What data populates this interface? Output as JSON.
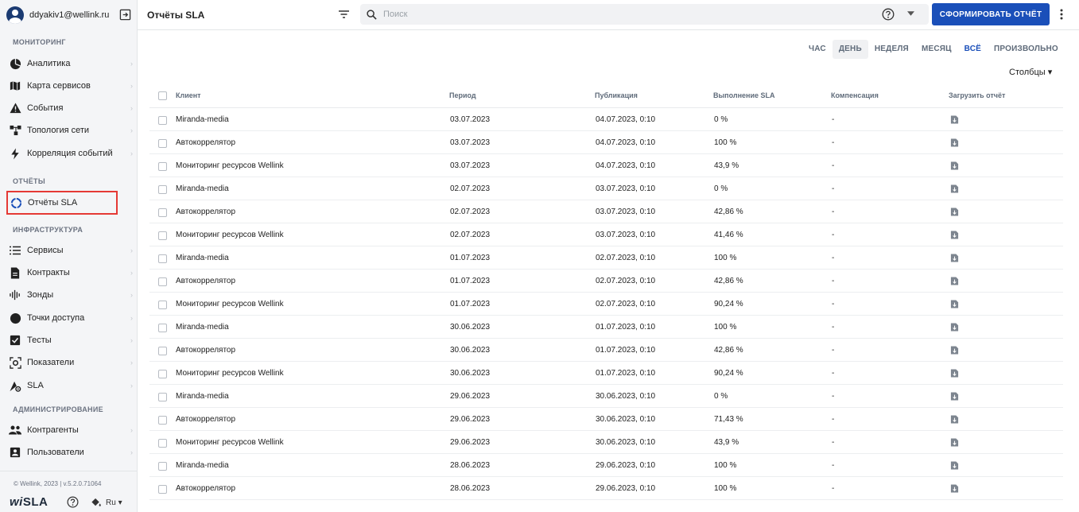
{
  "user": {
    "email": "ddyakiv1@wellink.ru"
  },
  "sidebar": {
    "sections": [
      {
        "label": "МОНИТОРИНГ"
      },
      {
        "label": "ОТЧЁТЫ"
      },
      {
        "label": "ИНФРАСТРУКТУРА"
      },
      {
        "label": "АДМИНИСТРИРОВАНИЕ"
      }
    ],
    "items": [
      {
        "label": "Аналитика",
        "icon": "pie-chart-icon"
      },
      {
        "label": "Карта сервисов",
        "icon": "map-icon"
      },
      {
        "label": "События",
        "icon": "warning-icon"
      },
      {
        "label": "Топология сети",
        "icon": "topology-icon"
      },
      {
        "label": "Корреляция событий",
        "icon": "bolt-icon"
      },
      {
        "label": "Отчёты SLA",
        "icon": "circle-arc-icon"
      },
      {
        "label": "Сервисы",
        "icon": "list-icon"
      },
      {
        "label": "Контракты",
        "icon": "document-icon"
      },
      {
        "label": "Зонды",
        "icon": "signal-icon"
      },
      {
        "label": "Точки доступа",
        "icon": "circle-icon"
      },
      {
        "label": "Тесты",
        "icon": "checkbox-icon"
      },
      {
        "label": "Показатели",
        "icon": "metrics-icon"
      },
      {
        "label": "SLA",
        "icon": "sla-gear-icon"
      },
      {
        "label": "Контрагенты",
        "icon": "people-icon"
      },
      {
        "label": "Пользователи",
        "icon": "user-card-icon"
      }
    ],
    "footer": {
      "copyright": "© Wellink, 2023 | v.5.2.0.71064",
      "brand_prefix": "wi",
      "brand_suffix": "SLA",
      "lang": "Ru"
    }
  },
  "header": {
    "title": "Отчёты SLA",
    "search_placeholder": "Поиск",
    "generate_button": "СФОРМИРОВАТЬ ОТЧЁТ"
  },
  "periods": [
    "ЧАС",
    "ДЕНЬ",
    "НЕДЕЛЯ",
    "МЕСЯЦ",
    "ВСЁ",
    "ПРОИЗВОЛЬНО"
  ],
  "columns_label": "Столбцы",
  "table": {
    "columns": [
      "Клиент",
      "Период",
      "Публикация",
      "Выполнение SLA",
      "Компенсация",
      "Загрузить отчёт"
    ],
    "rows": [
      [
        "Miranda-media",
        "03.07.2023",
        "04.07.2023, 0:10",
        "0 %",
        "-"
      ],
      [
        "Автокоррелятор",
        "03.07.2023",
        "04.07.2023, 0:10",
        "100 %",
        "-"
      ],
      [
        "Мониторинг ресурсов Wellink",
        "03.07.2023",
        "04.07.2023, 0:10",
        "43,9 %",
        "-"
      ],
      [
        "Miranda-media",
        "02.07.2023",
        "03.07.2023, 0:10",
        "0 %",
        "-"
      ],
      [
        "Автокоррелятор",
        "02.07.2023",
        "03.07.2023, 0:10",
        "42,86 %",
        "-"
      ],
      [
        "Мониторинг ресурсов Wellink",
        "02.07.2023",
        "03.07.2023, 0:10",
        "41,46 %",
        "-"
      ],
      [
        "Miranda-media",
        "01.07.2023",
        "02.07.2023, 0:10",
        "100 %",
        "-"
      ],
      [
        "Автокоррелятор",
        "01.07.2023",
        "02.07.2023, 0:10",
        "42,86 %",
        "-"
      ],
      [
        "Мониторинг ресурсов Wellink",
        "01.07.2023",
        "02.07.2023, 0:10",
        "90,24 %",
        "-"
      ],
      [
        "Miranda-media",
        "30.06.2023",
        "01.07.2023, 0:10",
        "100 %",
        "-"
      ],
      [
        "Автокоррелятор",
        "30.06.2023",
        "01.07.2023, 0:10",
        "42,86 %",
        "-"
      ],
      [
        "Мониторинг ресурсов Wellink",
        "30.06.2023",
        "01.07.2023, 0:10",
        "90,24 %",
        "-"
      ],
      [
        "Miranda-media",
        "29.06.2023",
        "30.06.2023, 0:10",
        "0 %",
        "-"
      ],
      [
        "Автокоррелятор",
        "29.06.2023",
        "30.06.2023, 0:10",
        "71,43 %",
        "-"
      ],
      [
        "Мониторинг ресурсов Wellink",
        "29.06.2023",
        "30.06.2023, 0:10",
        "43,9 %",
        "-"
      ],
      [
        "Miranda-media",
        "28.06.2023",
        "29.06.2023, 0:10",
        "100 %",
        "-"
      ],
      [
        "Автокоррелятор",
        "28.06.2023",
        "29.06.2023, 0:10",
        "100 %",
        "-"
      ]
    ]
  },
  "colors": {
    "primary": "#1a4fb9",
    "highlight": "#e53935",
    "sidebar_bg": "#f4f5f7"
  }
}
